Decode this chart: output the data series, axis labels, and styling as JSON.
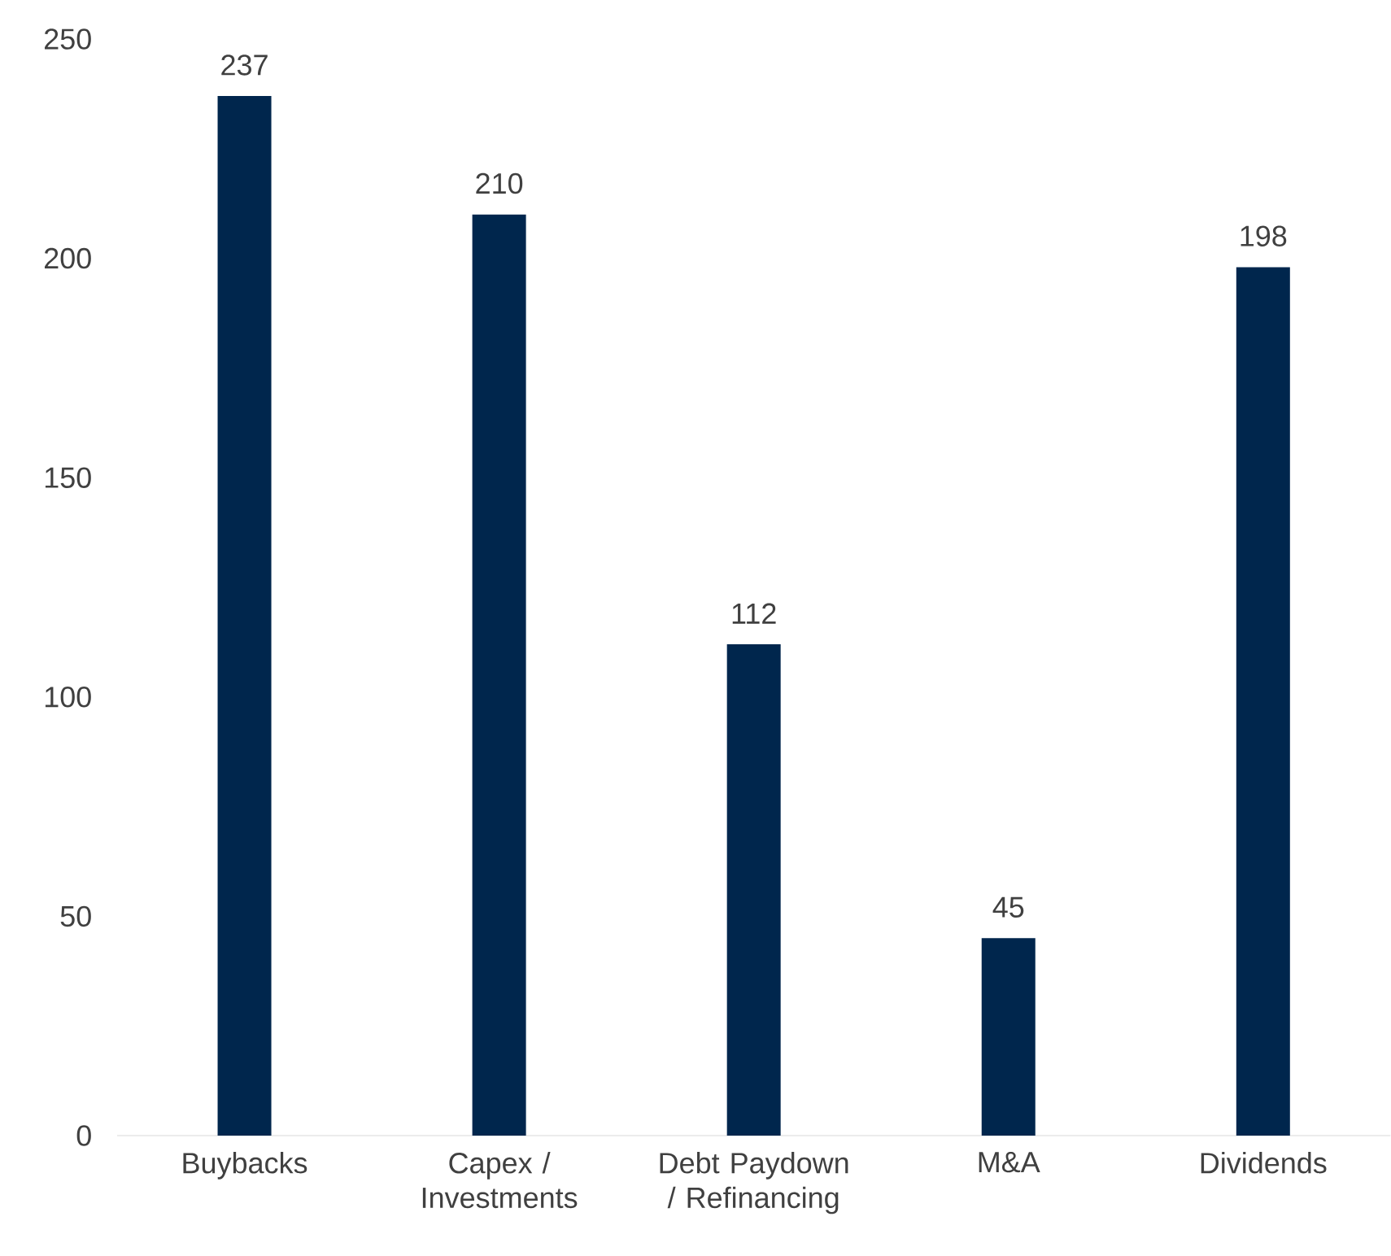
{
  "chart_data": {
    "type": "bar",
    "categories": [
      "Buybacks",
      "Capex / Investments",
      "Debt Paydown / Refinancing",
      "M&A",
      "Dividends"
    ],
    "values": [
      237,
      210,
      112,
      45,
      198
    ],
    "color": "#00264d",
    "ylim": [
      0,
      250
    ],
    "yticks": [
      0,
      50,
      100,
      150,
      200,
      250
    ],
    "data_labels": true
  }
}
